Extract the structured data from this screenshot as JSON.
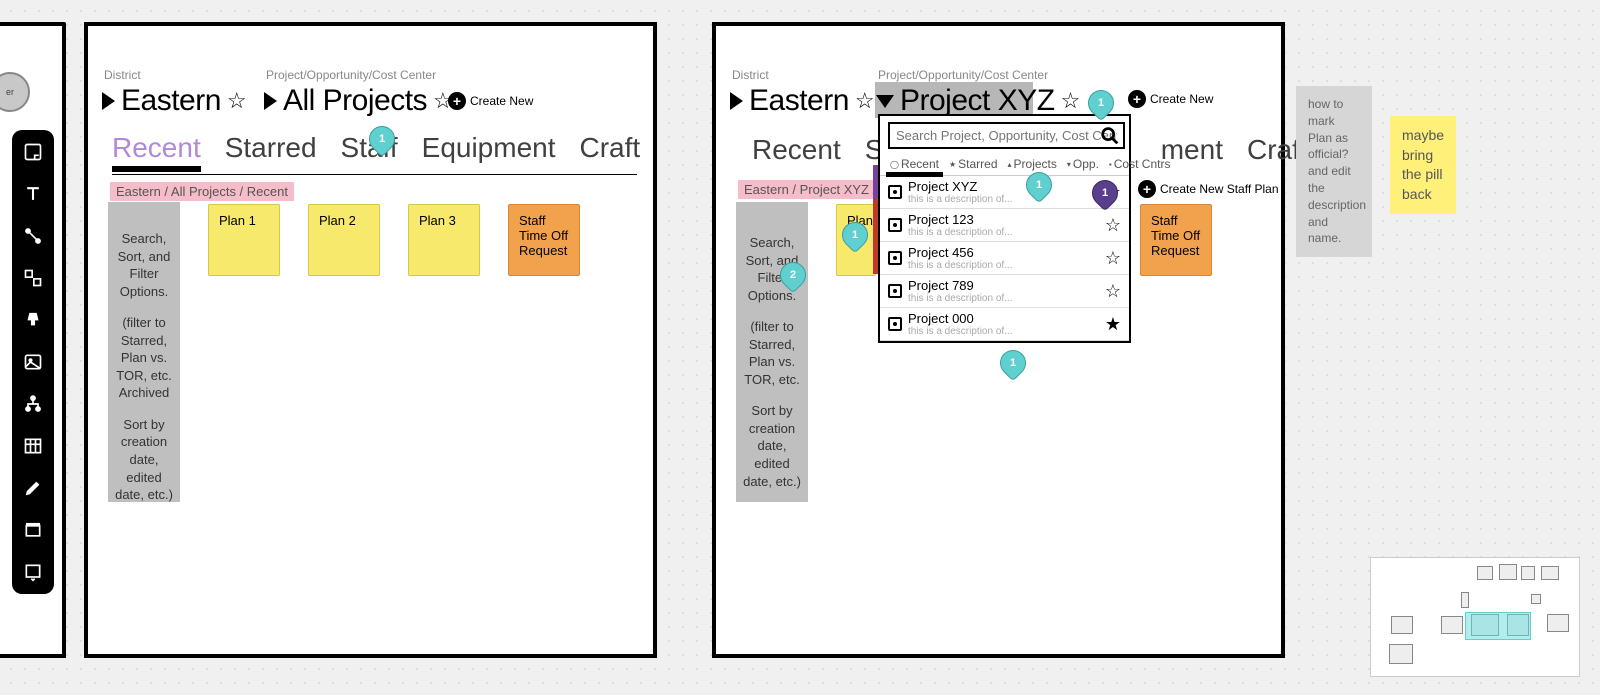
{
  "labels": {
    "district": "District",
    "pocc": "Project/Opportunity/Cost Center",
    "create_new": "Create New",
    "create_new_staff": "Create New Staff Plan"
  },
  "frame1": {
    "district": "Eastern",
    "project": "All Projects",
    "tabs": [
      "Recent",
      "Starred",
      "Staff",
      "Equipment",
      "Craft"
    ],
    "active_tab": 0,
    "breadcrumb": "Eastern  / All Projects / Recent",
    "filter_text_1": "Search, Sort, and Filter Options.",
    "filter_text_2": "(filter to Starred, Plan vs. TOR, etc. Archived",
    "filter_text_3": "Sort by creation date, edited date, etc.)",
    "cards": [
      {
        "label": "Plan 1",
        "type": "yellow"
      },
      {
        "label": "Plan 2",
        "type": "yellow"
      },
      {
        "label": "Plan 3",
        "type": "yellow"
      },
      {
        "label": "Staff Time Off Request",
        "type": "orange"
      }
    ]
  },
  "frame2": {
    "district": "Eastern",
    "project": "Project XYZ",
    "tabs": [
      "Recent",
      "S",
      "",
      "ment",
      "Craft"
    ],
    "breadcrumb": "Eastern  / Project XYZ / Staff",
    "filter_text_1": "Search, Sort, and Filter Options.",
    "filter_text_2": "(filter to Starred, Plan vs. TOR, etc.",
    "filter_text_3": "Sort by creation date, edited date, etc.)",
    "plan1": "Plan 1",
    "tor": "Staff Time Off Request"
  },
  "popup": {
    "placeholder": "Search Project, Opportunity, Cost Center",
    "filters": [
      "Recent",
      "Starred",
      "Projects",
      "Opp.",
      "Cost Cntrs"
    ],
    "results": [
      {
        "title": "Project XYZ",
        "desc": "this is a description of...",
        "starred": false,
        "pin": true
      },
      {
        "title": "Project 123",
        "desc": "this is a description of...",
        "starred": false
      },
      {
        "title": "Project 456",
        "desc": "this is a description of...",
        "starred": false
      },
      {
        "title": "Project 789",
        "desc": "this is a description of...",
        "starred": false
      },
      {
        "title": "Project 000",
        "desc": "this is a description of...",
        "starred": true
      }
    ]
  },
  "notes": {
    "gray": "how to mark Plan as official? and edit the description and name.",
    "yellow": "maybe bring the pill back"
  },
  "pins": {
    "p1": "1",
    "p2": "1",
    "p3": "2",
    "p4": "1",
    "p5": "1",
    "p6": "1"
  }
}
